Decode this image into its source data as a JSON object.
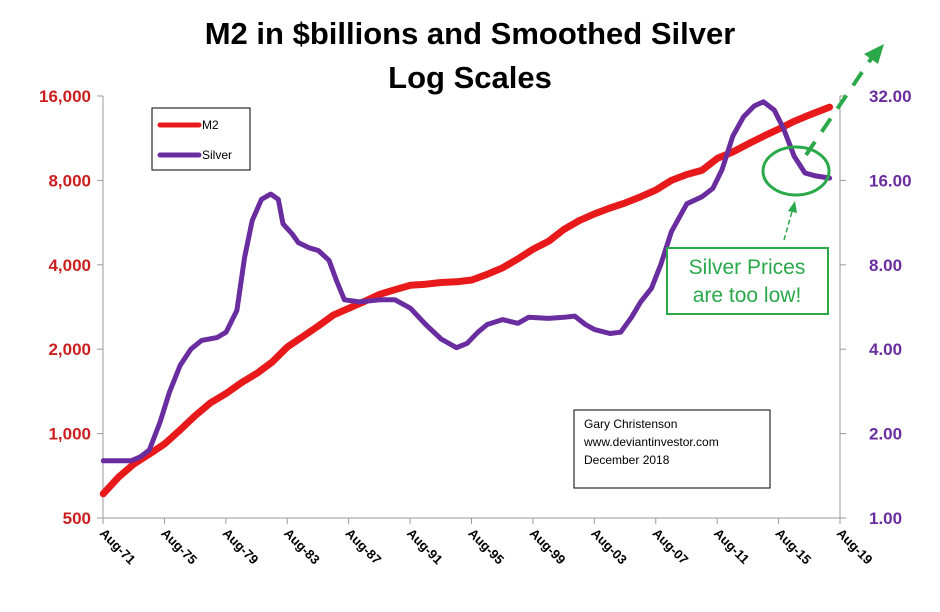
{
  "chart_data": {
    "type": "line",
    "title_lines": [
      "M2 in $billions and Smoothed Silver",
      "Log Scales"
    ],
    "x_tick_labels": [
      "Aug-71",
      "Aug-75",
      "Aug-79",
      "Aug-83",
      "Aug-87",
      "Aug-91",
      "Aug-95",
      "Aug-99",
      "Aug-03",
      "Aug-07",
      "Aug-11",
      "Aug-15",
      "Aug-19"
    ],
    "x_range": [
      1971.58,
      2019.58
    ],
    "left_axis": {
      "scale": "log",
      "range": [
        500,
        16000
      ],
      "ticks": [
        500,
        1000,
        2000,
        4000,
        8000,
        16000
      ],
      "tick_labels": [
        "500",
        "1,000",
        "2,000",
        "4,000",
        "8,000",
        "16,000"
      ],
      "color": "#cc1f1f"
    },
    "right_axis": {
      "scale": "log",
      "range": [
        1,
        32
      ],
      "ticks": [
        1,
        2,
        4,
        8,
        16,
        32
      ],
      "tick_labels": [
        "1.00",
        "2.00",
        "4.00",
        "8.00",
        "16.00",
        "32.00"
      ],
      "color": "#6a2d9f"
    },
    "gridlines": false,
    "legend": {
      "placement": "top-left"
    },
    "series": [
      {
        "name": "M2",
        "axis": "left",
        "color": "#e8191a",
        "points": [
          [
            1971.6,
            610
          ],
          [
            1972.6,
            700
          ],
          [
            1973.6,
            780
          ],
          [
            1974.6,
            845
          ],
          [
            1975.6,
            920
          ],
          [
            1976.6,
            1030
          ],
          [
            1977.6,
            1160
          ],
          [
            1978.6,
            1290
          ],
          [
            1979.6,
            1390
          ],
          [
            1980.6,
            1520
          ],
          [
            1981.6,
            1640
          ],
          [
            1982.6,
            1800
          ],
          [
            1983.6,
            2040
          ],
          [
            1984.6,
            2220
          ],
          [
            1985.6,
            2420
          ],
          [
            1986.6,
            2650
          ],
          [
            1987.6,
            2800
          ],
          [
            1988.6,
            2960
          ],
          [
            1989.6,
            3140
          ],
          [
            1990.6,
            3260
          ],
          [
            1991.6,
            3380
          ],
          [
            1992.6,
            3410
          ],
          [
            1993.6,
            3460
          ],
          [
            1994.6,
            3480
          ],
          [
            1995.6,
            3530
          ],
          [
            1996.6,
            3700
          ],
          [
            1997.6,
            3900
          ],
          [
            1998.6,
            4200
          ],
          [
            1999.6,
            4550
          ],
          [
            2000.6,
            4850
          ],
          [
            2001.6,
            5350
          ],
          [
            2002.6,
            5750
          ],
          [
            2003.6,
            6080
          ],
          [
            2004.6,
            6380
          ],
          [
            2005.6,
            6650
          ],
          [
            2006.6,
            7000
          ],
          [
            2007.6,
            7400
          ],
          [
            2008.6,
            8000
          ],
          [
            2009.6,
            8400
          ],
          [
            2010.6,
            8700
          ],
          [
            2011.6,
            9600
          ],
          [
            2012.6,
            10100
          ],
          [
            2013.6,
            10800
          ],
          [
            2014.6,
            11500
          ],
          [
            2015.6,
            12200
          ],
          [
            2016.6,
            13000
          ],
          [
            2017.6,
            13700
          ],
          [
            2018.9,
            14600
          ]
        ]
      },
      {
        "name": "Silver",
        "axis": "right",
        "color": "#6a2d9f",
        "points": [
          [
            1971.6,
            1.6
          ],
          [
            1973.4,
            1.6
          ],
          [
            1974.0,
            1.65
          ],
          [
            1974.6,
            1.75
          ],
          [
            1975.3,
            2.2
          ],
          [
            1975.9,
            2.8
          ],
          [
            1976.6,
            3.5
          ],
          [
            1977.3,
            4.0
          ],
          [
            1978.0,
            4.3
          ],
          [
            1979.0,
            4.4
          ],
          [
            1979.6,
            4.6
          ],
          [
            1980.3,
            5.5
          ],
          [
            1980.8,
            8.5
          ],
          [
            1981.3,
            11.5
          ],
          [
            1981.9,
            13.7
          ],
          [
            1982.5,
            14.3
          ],
          [
            1983.0,
            13.7
          ],
          [
            1983.3,
            11.2
          ],
          [
            1983.9,
            10.3
          ],
          [
            1984.3,
            9.6
          ],
          [
            1985.0,
            9.2
          ],
          [
            1985.6,
            9.0
          ],
          [
            1986.3,
            8.3
          ],
          [
            1986.8,
            7.0
          ],
          [
            1987.3,
            6.0
          ],
          [
            1988.3,
            5.9
          ],
          [
            1989.6,
            6.0
          ],
          [
            1990.6,
            6.0
          ],
          [
            1991.6,
            5.6
          ],
          [
            1992.6,
            4.9
          ],
          [
            1993.6,
            4.35
          ],
          [
            1994.6,
            4.05
          ],
          [
            1995.3,
            4.2
          ],
          [
            1996.0,
            4.6
          ],
          [
            1996.6,
            4.9
          ],
          [
            1997.6,
            5.1
          ],
          [
            1998.6,
            4.95
          ],
          [
            1999.3,
            5.2
          ],
          [
            2000.6,
            5.15
          ],
          [
            2001.6,
            5.2
          ],
          [
            2002.3,
            5.25
          ],
          [
            2003.0,
            4.9
          ],
          [
            2003.6,
            4.7
          ],
          [
            2004.6,
            4.55
          ],
          [
            2005.3,
            4.6
          ],
          [
            2006.0,
            5.2
          ],
          [
            2006.6,
            5.9
          ],
          [
            2007.3,
            6.6
          ],
          [
            2007.9,
            8.0
          ],
          [
            2008.6,
            10.5
          ],
          [
            2009.6,
            13.2
          ],
          [
            2010.6,
            14.0
          ],
          [
            2011.3,
            15.0
          ],
          [
            2011.9,
            17.5
          ],
          [
            2012.6,
            23.0
          ],
          [
            2013.3,
            27.0
          ],
          [
            2014.0,
            29.5
          ],
          [
            2014.6,
            30.5
          ],
          [
            2015.3,
            28.5
          ],
          [
            2015.9,
            24.5
          ],
          [
            2016.6,
            19.5
          ],
          [
            2017.3,
            17.0
          ],
          [
            2018.0,
            16.6
          ],
          [
            2018.9,
            16.3
          ]
        ]
      }
    ],
    "annotations": {
      "credit_lines": [
        "Gary Christenson",
        "www.deviantinvestor.com",
        "December 2018"
      ],
      "callout_lines": [
        "Silver Prices",
        "are too low!"
      ],
      "callout_color": "#2ba84a"
    }
  }
}
